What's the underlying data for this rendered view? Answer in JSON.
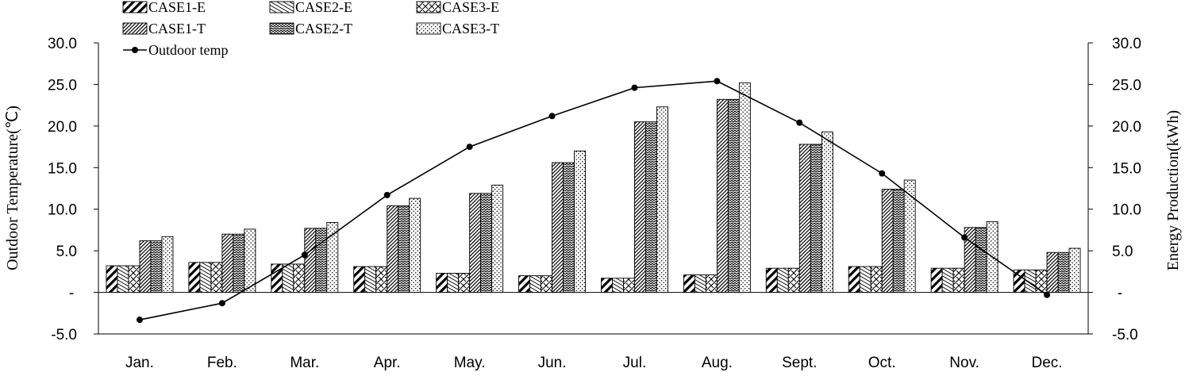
{
  "chart_data": {
    "type": "bar",
    "title": "",
    "categories": [
      "Jan.",
      "Feb.",
      "Mar.",
      "Apr.",
      "May.",
      "Jun.",
      "Jul.",
      "Aug.",
      "Sept.",
      "Oct.",
      "Nov.",
      "Dec."
    ],
    "series": [
      {
        "name": "CASE1-E",
        "pattern": "diag-bold",
        "values": [
          3.2,
          3.6,
          3.4,
          3.1,
          2.3,
          2.0,
          1.7,
          2.1,
          2.9,
          3.1,
          2.9,
          2.7
        ]
      },
      {
        "name": "CASE2-E",
        "pattern": "diag-fine",
        "values": [
          3.2,
          3.6,
          3.4,
          3.1,
          2.3,
          2.0,
          1.7,
          2.1,
          2.9,
          3.1,
          2.9,
          2.7
        ]
      },
      {
        "name": "CASE3-E",
        "pattern": "diag-cross",
        "values": [
          3.2,
          3.6,
          3.4,
          3.1,
          2.3,
          2.0,
          1.7,
          2.1,
          2.9,
          3.1,
          2.9,
          2.7
        ]
      },
      {
        "name": "CASE1-T",
        "pattern": "diag-dense",
        "values": [
          6.2,
          7.0,
          7.7,
          10.4,
          11.9,
          15.6,
          20.5,
          23.2,
          17.8,
          12.4,
          7.8,
          4.8
        ]
      },
      {
        "name": "CASE2-T",
        "pattern": "zigzag",
        "values": [
          6.2,
          7.0,
          7.7,
          10.4,
          11.9,
          15.6,
          20.5,
          23.2,
          17.8,
          12.4,
          7.8,
          4.8
        ]
      },
      {
        "name": "CASE3-T",
        "pattern": "dots",
        "values": [
          6.7,
          7.6,
          8.4,
          11.3,
          12.9,
          17.0,
          22.3,
          25.2,
          19.3,
          13.5,
          8.5,
          5.3
        ]
      }
    ],
    "line_series": {
      "name": "Outdoor temp",
      "values": [
        -3.3,
        -1.3,
        4.5,
        11.7,
        17.5,
        21.2,
        24.6,
        25.4,
        20.4,
        14.3,
        6.6,
        -0.3
      ]
    },
    "ylabel": "Outdoor Temperature(℃)",
    "y2label": "Energy Production(kWh)",
    "ylim": [
      -5.0,
      30.0
    ],
    "y2lim": [
      -5.0,
      30.0
    ],
    "yticks": [
      {
        "value": 30,
        "label": "30.0"
      },
      {
        "value": 25,
        "label": "25.0"
      },
      {
        "value": 20,
        "label": "20.0"
      },
      {
        "value": 15,
        "label": "15.0"
      },
      {
        "value": 10,
        "label": "10.0"
      },
      {
        "value": 5,
        "label": "5.0"
      },
      {
        "value": 0,
        "label": "-"
      },
      {
        "value": -5,
        "label": "-5.0"
      }
    ],
    "grid": false,
    "legend_position": "top-left",
    "colors": {
      "ink": "#000000",
      "background": "#ffffff"
    }
  }
}
